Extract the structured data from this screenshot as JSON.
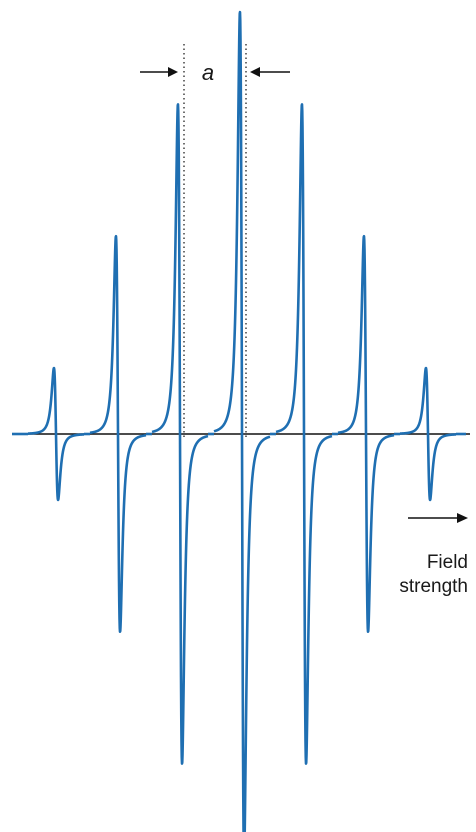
{
  "chart_data": {
    "type": "line",
    "title": "",
    "xlabel": "Field strength",
    "ylabel": "",
    "annotation": "a",
    "line_color": "#1f6fb2",
    "axis_color": "#111111",
    "grid": false,
    "lines": [
      {
        "position": -3,
        "amplitude": 0.2
      },
      {
        "position": -2,
        "amplitude": 0.6
      },
      {
        "position": -1,
        "amplitude": 1.0
      },
      {
        "position": 0,
        "amplitude": 1.28
      },
      {
        "position": 1,
        "amplitude": 1.0
      },
      {
        "position": 2,
        "amplitude": 0.6
      },
      {
        "position": 3,
        "amplitude": 0.2
      }
    ],
    "xlim": [
      -3.8,
      3.8
    ]
  },
  "labels": {
    "spacing": "a",
    "axis_line1": "Field",
    "axis_line2": "strength"
  }
}
